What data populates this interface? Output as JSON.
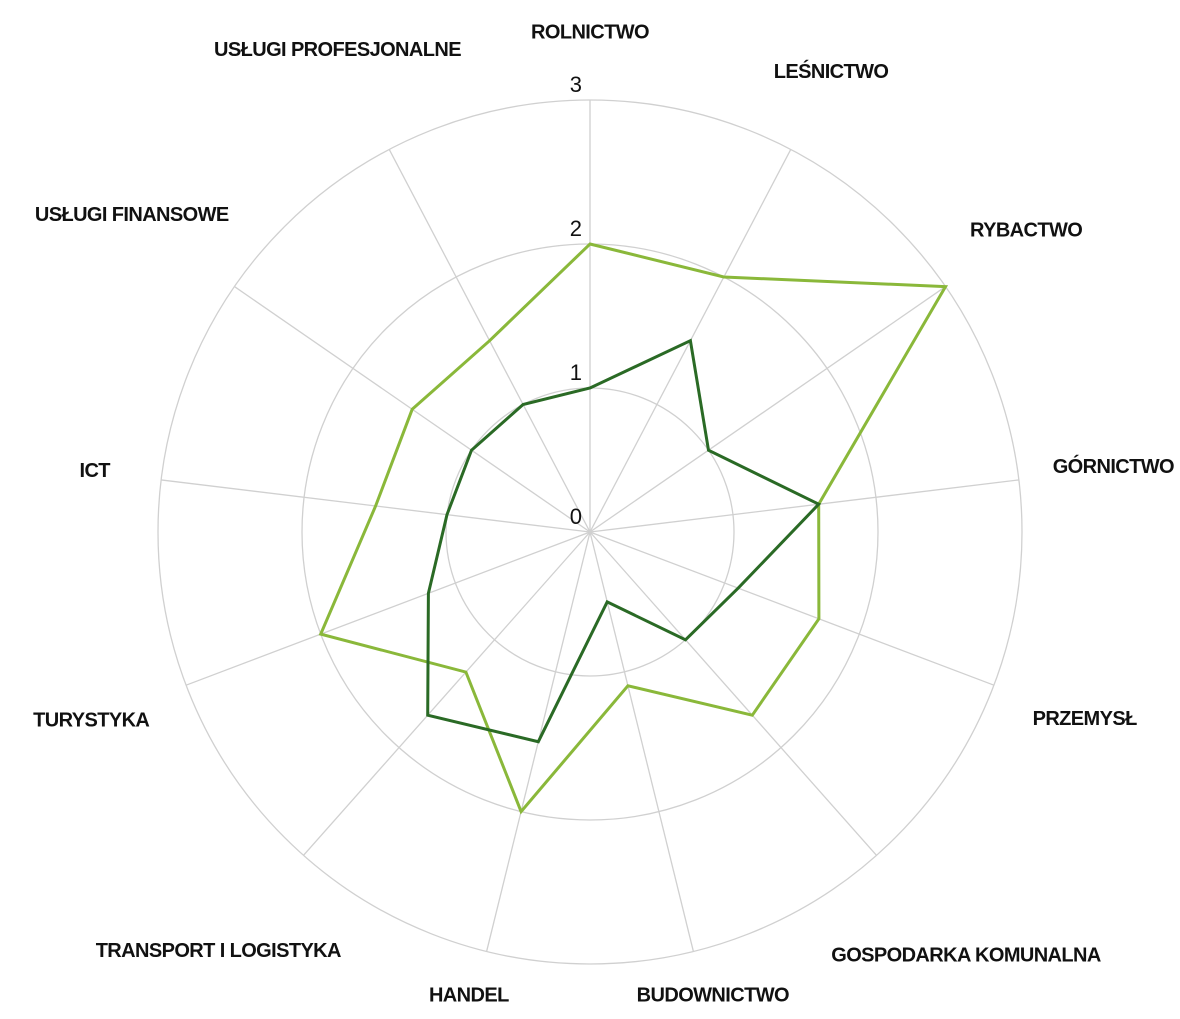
{
  "chart_data": {
    "type": "radar",
    "categories": [
      "ROLNICTWO",
      "LEŚNICTWO",
      "RYBACTWO",
      "GÓRNICTWO",
      "PRZEMYSŁ",
      "GOSPODARKA KOMUNALNA",
      "BUDOWNICTWO",
      "HANDEL",
      "TRANSPORT I LOGISTYKA",
      "TURYSTYKA",
      "ICT",
      "USŁUGI FINANSOWE",
      "USŁUGI PROFESJONALNE"
    ],
    "series": [
      {
        "color": "#8ab83a",
        "values": [
          2,
          2,
          3,
          1.6,
          1.7,
          1.7,
          1.1,
          2,
          1.3,
          2,
          1.5,
          1.5,
          1.5
        ]
      },
      {
        "color": "#2a6a25",
        "values": [
          1,
          1.5,
          1,
          1.6,
          1.1,
          1,
          0.5,
          1.5,
          1.7,
          1.2,
          1,
          1,
          1
        ]
      }
    ],
    "ylim": [
      0,
      3
    ],
    "yticks": [
      0,
      1,
      2,
      3
    ],
    "grid": true
  }
}
